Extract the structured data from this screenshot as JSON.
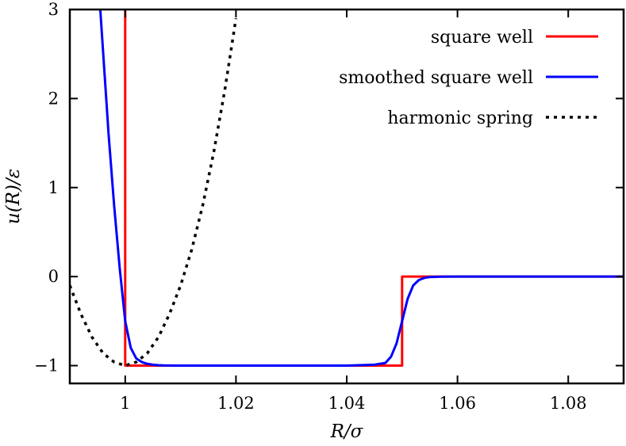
{
  "chart_data": {
    "type": "line",
    "title": "",
    "xlabel": "R/σ",
    "ylabel": "u(R)/ε",
    "xlim": [
      0.99,
      1.09
    ],
    "ylim": [
      -1.2,
      3
    ],
    "x_ticks": [
      1,
      1.02,
      1.04,
      1.06,
      1.08
    ],
    "x_tick_labels": [
      "1",
      "1.02",
      "1.04",
      "1.06",
      "1.08"
    ],
    "y_ticks": [
      -1,
      0,
      1,
      2,
      3
    ],
    "y_tick_labels": [
      "−1",
      "0",
      "1",
      "2",
      "3"
    ],
    "grid": false,
    "legend_position": "top-right",
    "series": [
      {
        "name": "square well",
        "color": "#ff0000",
        "style": "solid",
        "x": [
          1.0,
          1.0,
          1.05,
          1.05,
          1.09
        ],
        "y": [
          3.0,
          -1.0,
          -1.0,
          0.0,
          0.0
        ]
      },
      {
        "name": "smoothed square well",
        "color": "#0000ff",
        "style": "solid",
        "x": [
          0.9955,
          0.997,
          0.998,
          0.999,
          1.0,
          1.001,
          1.002,
          1.003,
          1.004,
          1.005,
          1.006,
          1.007,
          1.008,
          1.009,
          1.01,
          1.02,
          1.03,
          1.04,
          1.045,
          1.047,
          1.048,
          1.049,
          1.05,
          1.051,
          1.052,
          1.053,
          1.054,
          1.055,
          1.057,
          1.06,
          1.07,
          1.08,
          1.09
        ],
        "y": [
          3.0,
          1.6,
          0.8,
          0.1,
          -0.5,
          -0.8,
          -0.92,
          -0.96,
          -0.98,
          -0.99,
          -0.995,
          -0.998,
          -0.999,
          -1.0,
          -1.0,
          -1.0,
          -1.0,
          -1.0,
          -0.99,
          -0.97,
          -0.9,
          -0.75,
          -0.5,
          -0.25,
          -0.1,
          -0.04,
          -0.015,
          -0.005,
          -0.001,
          0.0,
          0.0,
          0.0,
          0.0
        ]
      },
      {
        "name": "harmonic spring",
        "color": "#000000",
        "style": "dotted",
        "x": [
          0.99,
          0.992,
          0.994,
          0.996,
          0.998,
          1.0,
          1.002,
          1.004,
          1.006,
          1.008,
          1.01,
          1.012,
          1.014,
          1.016,
          1.018,
          1.02
        ],
        "y": [
          -0.1,
          -0.42,
          -0.68,
          -0.86,
          -0.96,
          -1.0,
          -0.96,
          -0.86,
          -0.68,
          -0.42,
          -0.1,
          0.3,
          0.8,
          1.4,
          2.1,
          2.9
        ]
      }
    ]
  }
}
